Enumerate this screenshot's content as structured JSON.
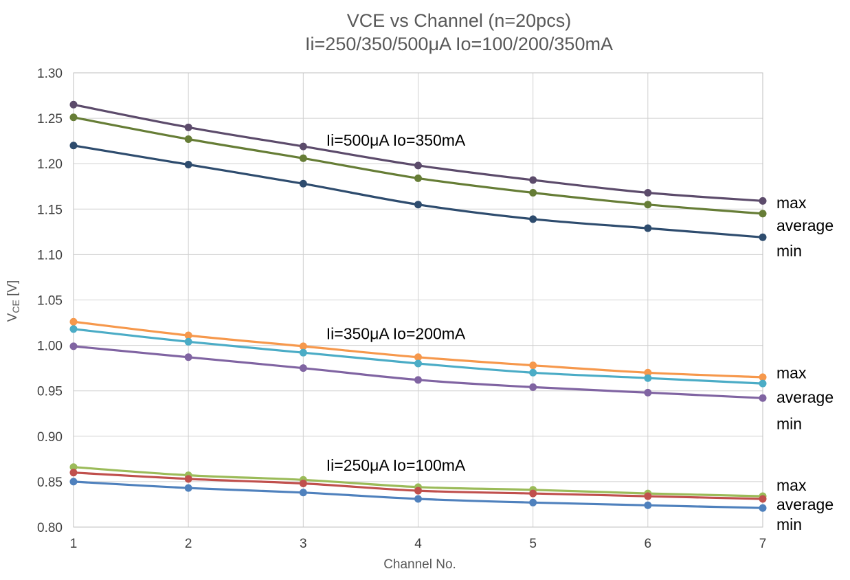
{
  "chart_data": {
    "type": "line",
    "title": [
      "VCE vs Channel (n=20pcs)",
      "Ii=250/350/500μA Io=100/200/350mA"
    ],
    "xlabel": "Channel No.",
    "ylabel": {
      "main": "V",
      "sub": "CE",
      "unit": " [V]"
    },
    "x": [
      1,
      2,
      3,
      4,
      5,
      6,
      7
    ],
    "xlim": [
      1,
      7
    ],
    "ylim": [
      0.8,
      1.3
    ],
    "yticks": [
      "0.80",
      "0.85",
      "0.90",
      "0.95",
      "1.00",
      "1.05",
      "1.10",
      "1.15",
      "1.20",
      "1.25",
      "1.30"
    ],
    "xticks": [
      "1",
      "2",
      "3",
      "4",
      "5",
      "6",
      "7"
    ],
    "grid": true,
    "legend": "none",
    "series": [
      {
        "color": "#5C4B6B",
        "values": [
          1.265,
          1.24,
          1.219,
          1.198,
          1.182,
          1.168,
          1.159
        ]
      },
      {
        "color": "#667D36",
        "values": [
          1.251,
          1.227,
          1.206,
          1.184,
          1.168,
          1.155,
          1.145
        ]
      },
      {
        "color": "#2E4C6E",
        "values": [
          1.22,
          1.199,
          1.178,
          1.155,
          1.139,
          1.129,
          1.119
        ]
      },
      {
        "color": "#F6984C",
        "values": [
          1.026,
          1.011,
          0.999,
          0.987,
          0.978,
          0.97,
          0.965
        ]
      },
      {
        "color": "#4BACC6",
        "values": [
          1.018,
          1.004,
          0.992,
          0.98,
          0.97,
          0.964,
          0.958
        ]
      },
      {
        "color": "#8064A2",
        "values": [
          0.999,
          0.987,
          0.975,
          0.962,
          0.954,
          0.948,
          0.942
        ]
      },
      {
        "color": "#9BBB59",
        "values": [
          0.866,
          0.857,
          0.852,
          0.844,
          0.841,
          0.837,
          0.834
        ]
      },
      {
        "color": "#C0504D",
        "values": [
          0.86,
          0.853,
          0.848,
          0.84,
          0.837,
          0.834,
          0.831
        ]
      },
      {
        "color": "#4F81BD",
        "values": [
          0.85,
          0.843,
          0.838,
          0.831,
          0.827,
          0.824,
          0.821
        ]
      }
    ],
    "annotations": [
      {
        "text": "Ii=500μA  Io=350mA",
        "at": [
          3.2,
          1.22
        ]
      },
      {
        "text": "Ii=350μA  Io=200mA",
        "at": [
          3.2,
          1.007
        ]
      },
      {
        "text": "Ii=250μA  Io=100mA",
        "at": [
          3.2,
          0.862
        ]
      }
    ],
    "side_labels": [
      {
        "text": "max",
        "y": 1.157
      },
      {
        "text": "average",
        "y": 1.132
      },
      {
        "text": "min",
        "y": 1.104
      },
      {
        "text": "max",
        "y": 0.97
      },
      {
        "text": "average",
        "y": 0.943
      },
      {
        "text": "min",
        "y": 0.914
      },
      {
        "text": "max",
        "y": 0.846
      },
      {
        "text": "average",
        "y": 0.825
      },
      {
        "text": "min",
        "y": 0.803
      }
    ]
  }
}
